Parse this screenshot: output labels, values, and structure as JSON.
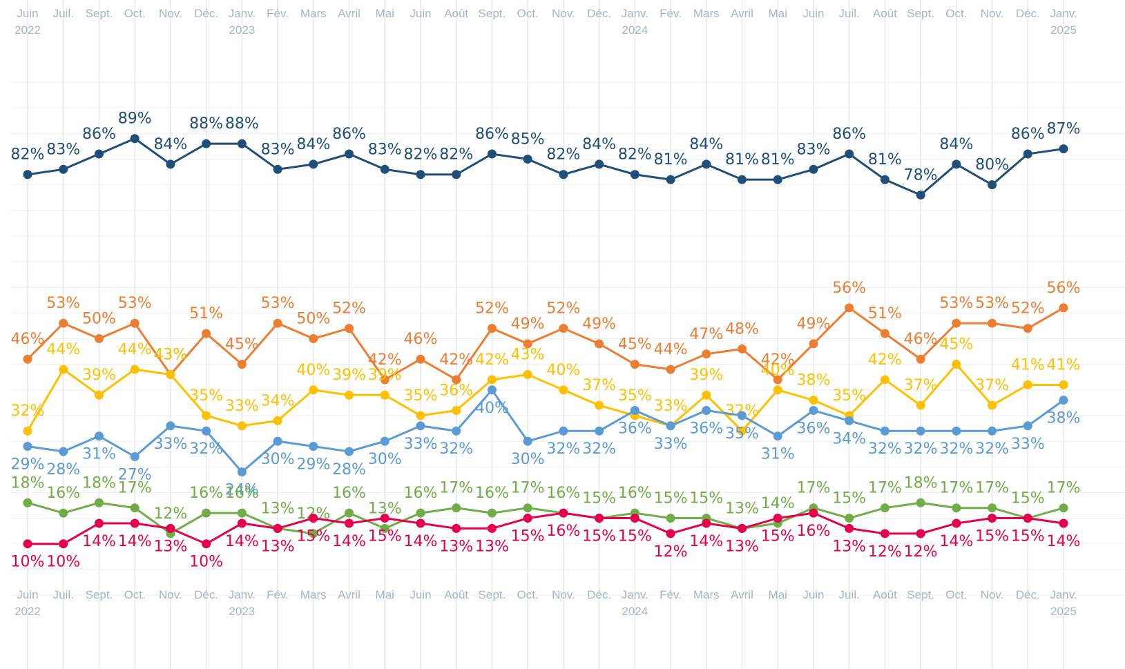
{
  "chart_data": {
    "type": "line",
    "categories": [
      "Juin\n2022",
      "Juil.",
      "Sept.",
      "Oct.",
      "Nov.",
      "Déc.",
      "Janv.\n2023",
      "Fév.",
      "Mars",
      "Avril",
      "Mai",
      "Juin",
      "Août",
      "Sept.",
      "Oct.",
      "Nov.",
      "Déc.",
      "Janv.\n2024",
      "Fév.",
      "Mars",
      "Avril",
      "Mai",
      "Juin",
      "Juil.",
      "Août",
      "Sept.",
      "Oct.",
      "Nov.",
      "Déc.",
      "Janv.\n2025"
    ],
    "ylim": [
      0,
      100
    ],
    "yticks": [
      0,
      5,
      10,
      15,
      20,
      25,
      30,
      35,
      40,
      45,
      50,
      55,
      60,
      65,
      70,
      75,
      80,
      85,
      90,
      95,
      100
    ],
    "grid": true,
    "series": [
      {
        "color": "#1f4e79",
        "values": [
          82,
          83,
          86,
          89,
          84,
          88,
          88,
          83,
          84,
          86,
          83,
          82,
          82,
          86,
          85,
          82,
          84,
          82,
          81,
          84,
          81,
          81,
          83,
          86,
          81,
          78,
          84,
          80,
          86,
          87
        ],
        "value_labels": [
          "82%",
          "83%",
          "86%",
          "89%",
          "84%",
          "88%",
          "88%",
          "83%",
          "84%",
          "86%",
          "83%",
          "82%",
          "82%",
          "86%",
          "85%",
          "82%",
          "84%",
          "82%",
          "81%",
          "84%",
          "81%",
          "81%",
          "83%",
          "86%",
          "81%",
          "78%",
          "84%",
          "80%",
          "86%",
          "87%"
        ]
      },
      {
        "color": "#ed7d31",
        "values": [
          46,
          53,
          50,
          53,
          43,
          51,
          45,
          53,
          50,
          52,
          42,
          46,
          42,
          52,
          49,
          52,
          49,
          45,
          44,
          47,
          48,
          42,
          49,
          56,
          51,
          46,
          53,
          53,
          52,
          56
        ],
        "value_labels": [
          "46%",
          "53%",
          "50%",
          "53%",
          "43%",
          "51%",
          "45%",
          "53%",
          "50%",
          "52%",
          "42%",
          "46%",
          "42%",
          "52%",
          "49%",
          "52%",
          "49%",
          "45%",
          "44%",
          "47%",
          "48%",
          "42%",
          "49%",
          "56%",
          "51%",
          "46%",
          "53%",
          "53%",
          "52%",
          "56%"
        ]
      },
      {
        "color": "#ffc000",
        "values": [
          32,
          44,
          39,
          44,
          43,
          35,
          33,
          34,
          40,
          39,
          39,
          35,
          36,
          42,
          43,
          40,
          37,
          35,
          33,
          39,
          32,
          40,
          38,
          35,
          42,
          37,
          45,
          37,
          41,
          41
        ],
        "value_labels": [
          "32%",
          "44%",
          "39%",
          "44%",
          "43%",
          "35%",
          "33%",
          "34%",
          "40%",
          "39%",
          "39%",
          "35%",
          "36%",
          "42%",
          "43%",
          "40%",
          "37%",
          "35%",
          "33%",
          "39%",
          "32%",
          "40%",
          "38%",
          "35%",
          "42%",
          "37%",
          "45%",
          "37%",
          "41%",
          "41%"
        ]
      },
      {
        "color": "#5b9bd5",
        "values": [
          29,
          28,
          31,
          27,
          33,
          32,
          24,
          30,
          29,
          28,
          30,
          33,
          32,
          40,
          30,
          32,
          32,
          36,
          33,
          36,
          35,
          31,
          36,
          34,
          32,
          32,
          32,
          32,
          33,
          38
        ],
        "value_labels": [
          "29%",
          "28%",
          "31%",
          "27%",
          "33%",
          "32%",
          "24%",
          "30%",
          "29%",
          "28%",
          "30%",
          "33%",
          "32%",
          "40%",
          "30%",
          "32%",
          "32%",
          "36%",
          "33%",
          "36%",
          "35%",
          "31%",
          "36%",
          "34%",
          "32%",
          "32%",
          "32%",
          "32%",
          "33%",
          "38%"
        ]
      },
      {
        "color": "#70ad47",
        "values": [
          18,
          16,
          18,
          17,
          12,
          16,
          16,
          13,
          12,
          16,
          13,
          16,
          17,
          16,
          17,
          16,
          15,
          16,
          15,
          15,
          13,
          14,
          17,
          15,
          17,
          18,
          17,
          17,
          15,
          17
        ],
        "value_labels": [
          "18%",
          "16%",
          "18%",
          "17%",
          "12%",
          "16%",
          "16%",
          "13%",
          "12%",
          "16%",
          "13%",
          "16%",
          "17%",
          "16%",
          "17%",
          "16%",
          "15%",
          "16%",
          "15%",
          "15%",
          "13%",
          "14%",
          "17%",
          "15%",
          "17%",
          "18%",
          "17%",
          "17%",
          "15%",
          "17%"
        ]
      },
      {
        "color": "#e6004c",
        "values": [
          10,
          10,
          14,
          14,
          13,
          10,
          14,
          13,
          15,
          14,
          15,
          14,
          13,
          13,
          15,
          16,
          15,
          15,
          12,
          14,
          13,
          15,
          16,
          13,
          12,
          12,
          14,
          15,
          15,
          14
        ],
        "value_labels": [
          "10%",
          "10%",
          "14%",
          "14%",
          "13%",
          "10%",
          "14%",
          "13%",
          "15%",
          "14%",
          "15%",
          "14%",
          "13%",
          "13%",
          "15%",
          "16%",
          "15%",
          "15%",
          "12%",
          "14%",
          "13%",
          "15%",
          "16%",
          "13%",
          "12%",
          "12%",
          "14%",
          "15%",
          "15%",
          "14%"
        ]
      }
    ]
  }
}
